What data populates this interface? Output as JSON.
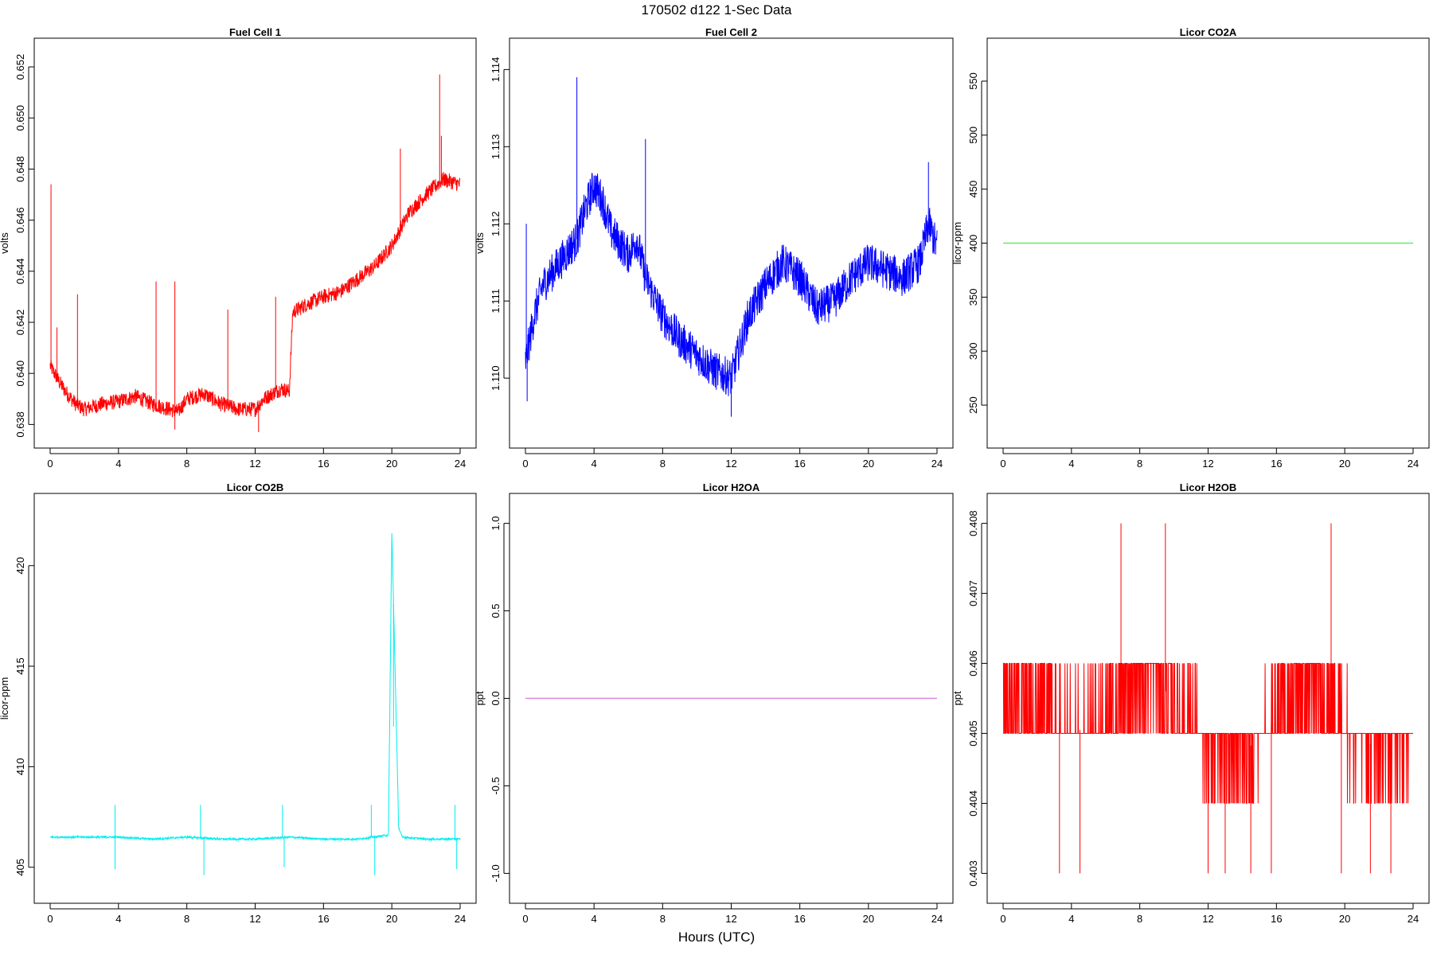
{
  "figure": {
    "title": "170502   d122   1-Sec Data",
    "xlabel": "Hours (UTC)"
  },
  "chart_data": [
    {
      "type": "line",
      "title": "Fuel Cell 1",
      "xlabel": "",
      "ylabel": "volts",
      "color": "#ff0000",
      "xlim": [
        0,
        24
      ],
      "ylim": [
        0.6377,
        0.6525
      ],
      "xticks": [
        0,
        4,
        8,
        12,
        16,
        20,
        24
      ],
      "yticks": [
        0.638,
        0.64,
        0.642,
        0.644,
        0.646,
        0.648,
        0.65,
        0.652
      ],
      "ytick_labels": [
        "0.638",
        "0.640",
        "0.642",
        "0.644",
        "0.646",
        "0.648",
        "0.650",
        "0.652"
      ],
      "grid": false,
      "series": [
        {
          "x": [
            0,
            0.5,
            1,
            1.5,
            2,
            3,
            4,
            5,
            6,
            7,
            7.5,
            8,
            9,
            10,
            11,
            12,
            12.5,
            13,
            13.5,
            14,
            14.2,
            15,
            16,
            17,
            18,
            19,
            20,
            21,
            22,
            23,
            24
          ],
          "y": [
            0.6403,
            0.6397,
            0.6392,
            0.6388,
            0.6386,
            0.6388,
            0.6389,
            0.6391,
            0.6388,
            0.6386,
            0.6385,
            0.639,
            0.6392,
            0.6388,
            0.6386,
            0.6386,
            0.639,
            0.6392,
            0.6394,
            0.6393,
            0.6424,
            0.6427,
            0.643,
            0.6432,
            0.6437,
            0.6442,
            0.645,
            0.6463,
            0.647,
            0.6476,
            0.6474
          ],
          "noise": 0.0006,
          "spikes": [
            {
              "x": 0.05,
              "y": 0.6474
            },
            {
              "x": 0.4,
              "y": 0.6418
            },
            {
              "x": 1.6,
              "y": 0.6431
            },
            {
              "x": 6.2,
              "y": 0.6436
            },
            {
              "x": 7.3,
              "y": 0.6436
            },
            {
              "x": 10.4,
              "y": 0.6425
            },
            {
              "x": 13.2,
              "y": 0.643
            },
            {
              "x": 20.5,
              "y": 0.6488
            },
            {
              "x": 22.8,
              "y": 0.6517
            },
            {
              "x": 22.9,
              "y": 0.6493
            }
          ],
          "dips": [
            {
              "x": 7.3,
              "y": 0.6378
            },
            {
              "x": 12.2,
              "y": 0.6377
            }
          ]
        }
      ]
    },
    {
      "type": "line",
      "title": "Fuel Cell 2",
      "xlabel": "",
      "ylabel": "volts",
      "color": "#0000ff",
      "xlim": [
        0,
        24
      ],
      "ylim": [
        1.1093,
        1.1142
      ],
      "xticks": [
        0,
        4,
        8,
        12,
        16,
        20,
        24
      ],
      "yticks": [
        1.11,
        1.111,
        1.112,
        1.113,
        1.114
      ],
      "ytick_labels": [
        "1.110",
        "1.111",
        "1.112",
        "1.113",
        "1.114"
      ],
      "grid": false,
      "series": [
        {
          "x": [
            0,
            0.5,
            1,
            2,
            3,
            3.5,
            4,
            4.5,
            5,
            6,
            6.5,
            7,
            8,
            9,
            10,
            11,
            12,
            13,
            14,
            15,
            16,
            17,
            18,
            19,
            20,
            21,
            22,
            23,
            23.5,
            24
          ],
          "y": [
            1.1102,
            1.1108,
            1.1112,
            1.1115,
            1.1118,
            1.1122,
            1.1125,
            1.1123,
            1.1119,
            1.1116,
            1.1118,
            1.1113,
            1.1108,
            1.1105,
            1.1103,
            1.1101,
            1.11,
            1.1108,
            1.1112,
            1.1115,
            1.1113,
            1.1109,
            1.111,
            1.1113,
            1.1115,
            1.1114,
            1.1113,
            1.1115,
            1.112,
            1.1117
          ],
          "noise": 0.0005,
          "spikes": [
            {
              "x": 0.05,
              "y": 1.112
            },
            {
              "x": 3.0,
              "y": 1.1139
            },
            {
              "x": 7.0,
              "y": 1.1131
            },
            {
              "x": 23.5,
              "y": 1.1128
            }
          ],
          "dips": [
            {
              "x": 0.1,
              "y": 1.1097
            },
            {
              "x": 12.0,
              "y": 1.1095
            }
          ]
        }
      ]
    },
    {
      "type": "line",
      "title": "Licor CO2A",
      "xlabel": "",
      "ylabel": "licor-ppm",
      "color": "#66ee66",
      "xlim": [
        0,
        24
      ],
      "ylim": [
        225,
        575
      ],
      "xticks": [
        0,
        4,
        8,
        12,
        16,
        20,
        24
      ],
      "yticks": [
        250,
        300,
        350,
        400,
        450,
        500,
        550
      ],
      "ytick_labels": [
        "250",
        "300",
        "350",
        "400",
        "450",
        "500",
        "550"
      ],
      "grid": false,
      "series": [
        {
          "x": [
            0,
            24
          ],
          "y": [
            400,
            400
          ],
          "noise": 0
        }
      ]
    },
    {
      "type": "line",
      "title": "Licor CO2B",
      "xlabel": "",
      "ylabel": "licor-ppm",
      "color": "#00eeee",
      "xlim": [
        0,
        24
      ],
      "ylim": [
        404.0,
        422.8
      ],
      "xticks": [
        0,
        4,
        8,
        12,
        16,
        20,
        24
      ],
      "yticks": [
        405,
        410,
        415,
        420
      ],
      "ytick_labels": [
        "405",
        "410",
        "415",
        "420"
      ],
      "grid": false,
      "series": [
        {
          "x": [
            0,
            2,
            4,
            6,
            8,
            10,
            12,
            14,
            16,
            18,
            19.8,
            20,
            20.2,
            20.4,
            20.6,
            22,
            24
          ],
          "y": [
            406.5,
            406.5,
            406.5,
            406.4,
            406.5,
            406.4,
            406.4,
            406.5,
            406.4,
            406.4,
            406.6,
            421.7,
            414.5,
            407.0,
            406.5,
            406.4,
            406.4
          ],
          "noise": 0.1,
          "spikes": [
            {
              "x": 3.8,
              "y": 408.1
            },
            {
              "x": 8.8,
              "y": 408.1
            },
            {
              "x": 13.6,
              "y": 408.1
            },
            {
              "x": 18.8,
              "y": 408.1
            },
            {
              "x": 23.7,
              "y": 408.1
            },
            {
              "x": 20.1,
              "y": 412.0
            }
          ],
          "dips": [
            {
              "x": 3.8,
              "y": 404.9
            },
            {
              "x": 9.0,
              "y": 404.6
            },
            {
              "x": 13.7,
              "y": 405.0
            },
            {
              "x": 19.0,
              "y": 404.6
            },
            {
              "x": 23.8,
              "y": 404.9
            }
          ]
        }
      ]
    },
    {
      "type": "line",
      "title": "Licor H2OA",
      "xlabel": "",
      "ylabel": "ppt",
      "color": "#dd88dd",
      "xlim": [
        0,
        24
      ],
      "ylim": [
        -1.08,
        1.08
      ],
      "xticks": [
        0,
        4,
        8,
        12,
        16,
        20,
        24
      ],
      "yticks": [
        -1.0,
        -0.5,
        0.0,
        0.5,
        1.0
      ],
      "ytick_labels": [
        "-1.0",
        "-0.5",
        "0.0",
        "0.5",
        "1.0"
      ],
      "grid": false,
      "series": [
        {
          "x": [
            0,
            24
          ],
          "y": [
            0,
            0
          ],
          "noise": 0
        }
      ]
    },
    {
      "type": "line",
      "title": "Licor H2OB",
      "xlabel": "",
      "ylabel": "ppt",
      "color": "#ff0000",
      "xlim": [
        0,
        24
      ],
      "ylim": [
        0.4028,
        0.4082
      ],
      "xticks": [
        0,
        4,
        8,
        12,
        16,
        20,
        24
      ],
      "yticks": [
        0.403,
        0.404,
        0.405,
        0.406,
        0.407,
        0.408
      ],
      "ytick_labels": [
        "0.403",
        "0.404",
        "0.405",
        "0.406",
        "0.407",
        "0.408"
      ],
      "grid": false,
      "series": [
        {
          "x": [
            0,
            2,
            4,
            6,
            7,
            8,
            9,
            10,
            12,
            14,
            16,
            17,
            18,
            19,
            20,
            22,
            24
          ],
          "y": [
            0.4055,
            0.4055,
            0.405,
            0.4052,
            0.4055,
            0.4058,
            0.4057,
            0.4055,
            0.4048,
            0.4047,
            0.4052,
            0.4055,
            0.4056,
            0.4055,
            0.405,
            0.4048,
            0.405
          ],
          "noise": 0.0011,
          "quantum": 0.001,
          "spikes": [
            {
              "x": 6.9,
              "y": 0.408
            },
            {
              "x": 9.5,
              "y": 0.408
            },
            {
              "x": 19.2,
              "y": 0.408
            }
          ],
          "dips": [
            {
              "x": 3.3,
              "y": 0.403
            },
            {
              "x": 4.5,
              "y": 0.403
            },
            {
              "x": 12.0,
              "y": 0.403
            },
            {
              "x": 13.0,
              "y": 0.403
            },
            {
              "x": 14.5,
              "y": 0.403
            },
            {
              "x": 15.7,
              "y": 0.403
            },
            {
              "x": 19.8,
              "y": 0.403
            },
            {
              "x": 21.5,
              "y": 0.403
            },
            {
              "x": 22.7,
              "y": 0.403
            }
          ]
        }
      ]
    }
  ]
}
